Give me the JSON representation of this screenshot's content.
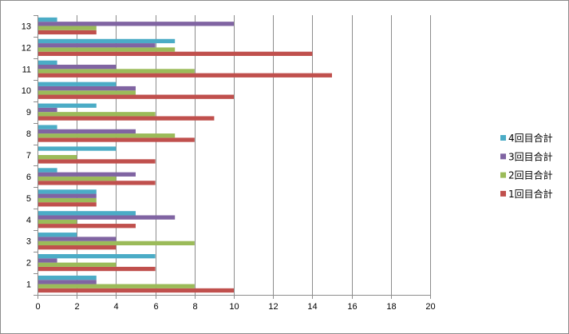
{
  "chart_data": {
    "type": "bar",
    "orientation": "horizontal",
    "categories": [
      "1",
      "2",
      "3",
      "4",
      "5",
      "6",
      "7",
      "8",
      "9",
      "10",
      "11",
      "12",
      "13"
    ],
    "series": [
      {
        "name": "1回目合計",
        "color": "#c0504d",
        "values": [
          10,
          6,
          4,
          5,
          3,
          6,
          6,
          8,
          9,
          10,
          15,
          14,
          3
        ]
      },
      {
        "name": "2回目合計",
        "color": "#9bbb59",
        "values": [
          8,
          4,
          8,
          2,
          3,
          4,
          2,
          7,
          6,
          5,
          8,
          7,
          3
        ]
      },
      {
        "name": "3回目合計",
        "color": "#8064a2",
        "values": [
          3,
          1,
          4,
          7,
          3,
          5,
          0,
          5,
          1,
          5,
          4,
          6,
          10
        ]
      },
      {
        "name": "4回目合計",
        "color": "#4bacc6",
        "values": [
          3,
          6,
          2,
          5,
          3,
          1,
          4,
          1,
          3,
          4,
          1,
          7,
          1
        ]
      }
    ],
    "xlim": [
      0,
      20
    ],
    "x_ticks": [
      "0",
      "2",
      "4",
      "6",
      "8",
      "10",
      "12",
      "14",
      "16",
      "18",
      "20"
    ],
    "grid": "vertical",
    "legend_position": "right",
    "legend_order": [
      "4回目合計",
      "3回目合計",
      "2回目合計",
      "1回目合計"
    ],
    "title": "",
    "xlabel": "",
    "ylabel": ""
  }
}
